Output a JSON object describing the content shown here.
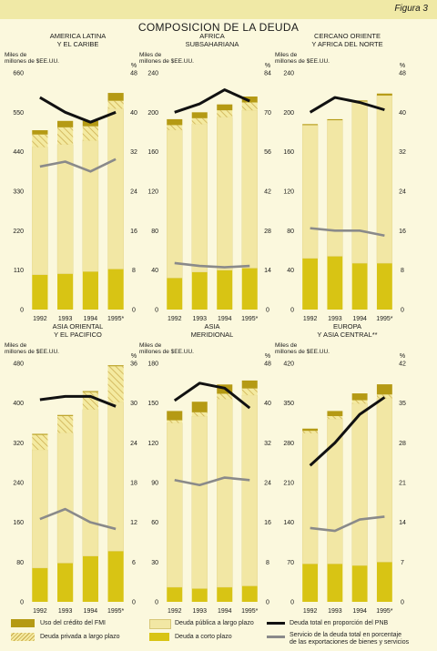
{
  "figure_label": "Figura 3",
  "title": "COMPOSICION DE LA DEUDA",
  "colors": {
    "imf": "#b59a14",
    "public_long": "#f2e7a4",
    "short": "#d8c414",
    "debt_gnp": "#111111",
    "debt_service": "#8a8a8a"
  },
  "legend": {
    "imf": "Uso del crédito del FMI",
    "private_long": "Deuda privada a largo plazo",
    "public_long": "Deuda pública a largo plazo",
    "short": "Deuda a corto plazo",
    "debt_gnp": "Deuda total en proporción del PNB",
    "debt_service_1": "Servicio de la deuda total en porcentaje",
    "debt_service_2": "de las exportaciones de bienes y servicios"
  },
  "chart_data": [
    {
      "type": "bar",
      "title": "AMERICA LATINA Y EL CARIBE",
      "title_lines": [
        "AMERICA LATINA",
        "Y EL CARIBE"
      ],
      "ylabel_lines": [
        "Miles de",
        "millones de $EE.UU."
      ],
      "y2label": "%",
      "categories": [
        "1992",
        "1993",
        "1994",
        "1995*"
      ],
      "ylim": [
        0,
        660
      ],
      "yticks": [
        0,
        110,
        220,
        330,
        440,
        550,
        660
      ],
      "y2lim": [
        0,
        48
      ],
      "y2ticks": [
        0,
        8,
        16,
        24,
        32,
        40,
        48
      ],
      "series": [
        {
          "name": "Deuda a corto plazo",
          "values": [
            97,
            100,
            106,
            113
          ]
        },
        {
          "name": "Deuda pública a largo plazo",
          "values": [
            356,
            360,
            365,
            447
          ]
        },
        {
          "name": "Deuda privada a largo plazo",
          "values": [
            35,
            48,
            40,
            22
          ]
        },
        {
          "name": "Uso del crédito del FMI",
          "values": [
            12,
            18,
            15,
            22
          ]
        },
        {
          "name": "Deuda total en proporción del PNB",
          "axis": "y2",
          "values": [
            43,
            40,
            38,
            40
          ]
        },
        {
          "name": "Servicio de la deuda total en porcentaje de las exportaciones de bienes y servicios",
          "axis": "y2",
          "values": [
            29,
            30,
            28,
            30.5
          ]
        }
      ]
    },
    {
      "type": "bar",
      "title": "AFRICA SUBSAHARIANA",
      "title_lines": [
        "AFRICA",
        "SUBSAHARIANA"
      ],
      "ylabel_lines": [
        "Miles de",
        "millones de $EE.UU."
      ],
      "y2label": "%",
      "categories": [
        "1992",
        "1993",
        "1994",
        "1995*"
      ],
      "ylim": [
        0,
        240
      ],
      "yticks": [
        0,
        40,
        80,
        120,
        160,
        200,
        240
      ],
      "y2lim": [
        0,
        84
      ],
      "y2ticks": [
        0,
        14,
        28,
        42,
        56,
        70,
        84
      ],
      "series": [
        {
          "name": "Deuda a corto plazo",
          "values": [
            32,
            38,
            40,
            42
          ]
        },
        {
          "name": "Deuda pública a largo plazo",
          "values": [
            150,
            150,
            155,
            160
          ]
        },
        {
          "name": "Deuda privada a largo plazo",
          "values": [
            5,
            6,
            7,
            8
          ]
        },
        {
          "name": "Uso del crédito del FMI",
          "values": [
            6,
            6,
            6,
            6
          ]
        },
        {
          "name": "Deuda total en proporción del PNB",
          "axis": "y2",
          "values": [
            70,
            73,
            78,
            74
          ]
        },
        {
          "name": "Servicio de la deuda total en porcentaje de las exportaciones de bienes y servicios",
          "axis": "y2",
          "values": [
            16.5,
            15.5,
            15,
            15.5
          ]
        }
      ]
    },
    {
      "type": "bar",
      "title": "CERCANO ORIENTE Y AFRICA DEL NORTE",
      "title_lines": [
        "CERCANO ORIENTE",
        "Y AFRICA DEL NORTE"
      ],
      "ylabel_lines": [
        "Miles de",
        "millones de $EE.UU."
      ],
      "y2label": "%",
      "categories": [
        "1992",
        "1993",
        "1994",
        "1995*"
      ],
      "ylim": [
        0,
        240
      ],
      "yticks": [
        0,
        40,
        80,
        120,
        160,
        200,
        240
      ],
      "y2lim": [
        0,
        48
      ],
      "y2ticks": [
        0,
        8,
        16,
        24,
        32,
        40,
        48
      ],
      "series": [
        {
          "name": "Deuda a corto plazo",
          "values": [
            52,
            54,
            47,
            47
          ]
        },
        {
          "name": "Deuda pública a largo plazo",
          "values": [
            135,
            138,
            164,
            170
          ]
        },
        {
          "name": "Deuda privada a largo plazo",
          "values": [
            0,
            0,
            0,
            0
          ]
        },
        {
          "name": "Uso del crédito del FMI",
          "values": [
            1,
            1,
            1,
            2
          ]
        },
        {
          "name": "Deuda total en proporción del PNB",
          "axis": "y2",
          "values": [
            40,
            43,
            42,
            40.5
          ]
        },
        {
          "name": "Servicio de la deuda total en porcentaje de las exportaciones de bienes y servicios",
          "axis": "y2",
          "values": [
            16.5,
            16,
            16,
            15
          ]
        }
      ]
    },
    {
      "type": "bar",
      "title": "ASIA ORIENTAL Y EL PACIFICO",
      "title_lines": [
        "ASIA ORIENTAL",
        "Y EL PACIFICO"
      ],
      "ylabel_lines": [
        "Miles de",
        "millones de $EE.UU."
      ],
      "y2label": "%",
      "categories": [
        "1992",
        "1993",
        "1994",
        "1995*"
      ],
      "ylim": [
        0,
        480
      ],
      "yticks": [
        0,
        80,
        160,
        240,
        320,
        400,
        480
      ],
      "y2lim": [
        0,
        36
      ],
      "y2ticks": [
        0,
        6,
        12,
        18,
        24,
        30,
        36
      ],
      "series": [
        {
          "name": "Deuda a corto plazo",
          "values": [
            68,
            78,
            92,
            102
          ]
        },
        {
          "name": "Deuda pública a largo plazo",
          "values": [
            238,
            262,
            295,
            300
          ]
        },
        {
          "name": "Deuda privada a largo plazo",
          "values": [
            30,
            34,
            35,
            72
          ]
        },
        {
          "name": "Uso del crédito del FMI",
          "values": [
            2,
            2,
            2,
            2
          ]
        },
        {
          "name": "Deuda total en proporción del PNB",
          "axis": "y2",
          "values": [
            30.5,
            31,
            31,
            29.5
          ]
        },
        {
          "name": "Servicio de la deuda total en porcentaje de las exportaciones de bienes y servicios",
          "axis": "y2",
          "values": [
            12.5,
            14,
            12,
            11
          ]
        }
      ]
    },
    {
      "type": "bar",
      "title": "ASIA MERIDIONAL",
      "title_lines": [
        "ASIA",
        "MERIDIONAL"
      ],
      "ylabel_lines": [
        "Miles de",
        "millones de $EE.UU."
      ],
      "y2label": "%",
      "categories": [
        "1992",
        "1993",
        "1994",
        "1995*"
      ],
      "ylim": [
        0,
        180
      ],
      "yticks": [
        0,
        30,
        60,
        90,
        120,
        150,
        180
      ],
      "y2lim": [
        0,
        48
      ],
      "y2ticks": [
        0,
        8,
        16,
        24,
        32,
        40,
        48
      ],
      "series": [
        {
          "name": "Deuda a corto plazo",
          "values": [
            11,
            10,
            11,
            12
          ]
        },
        {
          "name": "Deuda pública a largo plazo",
          "values": [
            124,
            130,
            142,
            144
          ]
        },
        {
          "name": "Deuda privada a largo plazo",
          "values": [
            2,
            3,
            4,
            5
          ]
        },
        {
          "name": "Uso del crédito del FMI",
          "values": [
            7,
            8,
            7,
            6
          ]
        },
        {
          "name": "Deuda total en proporción del PNB",
          "axis": "y2",
          "values": [
            40.5,
            44,
            43,
            39
          ]
        },
        {
          "name": "Servicio de la deuda total en porcentaje de las exportaciones de bienes y servicios",
          "axis": "y2",
          "values": [
            24.5,
            23.5,
            25,
            24.5
          ]
        }
      ]
    },
    {
      "type": "bar",
      "title": "EUROPA Y ASIA CENTRAL**",
      "title_lines": [
        "EUROPA",
        "Y ASIA CENTRAL**"
      ],
      "ylabel_lines": [
        "Miles de",
        "millones de $EE.UU."
      ],
      "y2label": "%",
      "categories": [
        "1992",
        "1993",
        "1994",
        "1995*"
      ],
      "ylim": [
        0,
        420
      ],
      "yticks": [
        0,
        70,
        140,
        210,
        280,
        350,
        420
      ],
      "y2lim": [
        0,
        42
      ],
      "y2ticks": [
        0,
        7,
        14,
        21,
        28,
        35,
        42
      ],
      "series": [
        {
          "name": "Deuda a corto plazo",
          "values": [
            67,
            67,
            64,
            70
          ]
        },
        {
          "name": "Deuda pública a largo plazo",
          "values": [
            230,
            255,
            285,
            288
          ]
        },
        {
          "name": "Deuda privada a largo plazo",
          "values": [
            4,
            5,
            6,
            7
          ]
        },
        {
          "name": "Uso del crédito del FMI",
          "values": [
            4,
            9,
            12,
            18
          ]
        },
        {
          "name": "Deuda total en proporción del PNB",
          "axis": "y2",
          "values": [
            24,
            28,
            33,
            36
          ]
        },
        {
          "name": "Servicio de la deuda total en porcentaje de las exportaciones de bienes y servicios",
          "axis": "y2",
          "values": [
            13,
            12.5,
            14.5,
            15
          ]
        }
      ]
    }
  ]
}
